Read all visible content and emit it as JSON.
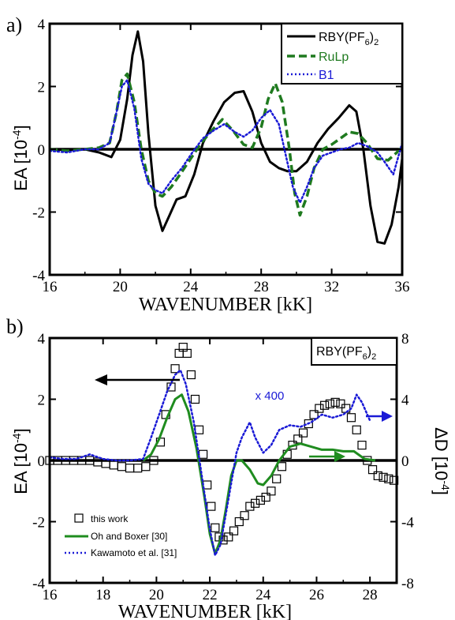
{
  "chart_data": [
    {
      "panel_label": "a)",
      "type": "line",
      "xlabel": "WAVENUMBER [kK]",
      "ylabel": "EA [10",
      "ylabel_exp": "-4",
      "ylabel_close": "]",
      "xlim": [
        16,
        36
      ],
      "ylim": [
        -4,
        4
      ],
      "x_ticks": [
        16,
        20,
        24,
        28,
        32,
        36
      ],
      "y_ticks": [
        -4,
        -2,
        0,
        2,
        4
      ],
      "grid": false,
      "legend_position": "top-right",
      "zero_line": true,
      "series": [
        {
          "name": "RBY(PF6)2",
          "legend_main": "RBY(PF",
          "legend_sub": "6",
          "legend_tail": ")",
          "legend_sub2": "2",
          "color": "#000000",
          "style": "solid",
          "points": [
            [
              16,
              0
            ],
            [
              17,
              -0.02
            ],
            [
              18,
              0
            ],
            [
              18.8,
              -0.1
            ],
            [
              19.5,
              -0.25
            ],
            [
              20,
              0.3
            ],
            [
              20.4,
              1.6
            ],
            [
              20.7,
              3.0
            ],
            [
              21.0,
              3.75
            ],
            [
              21.3,
              2.8
            ],
            [
              21.6,
              0.5
            ],
            [
              22.0,
              -1.8
            ],
            [
              22.4,
              -2.6
            ],
            [
              22.8,
              -2.1
            ],
            [
              23.2,
              -1.6
            ],
            [
              23.7,
              -1.5
            ],
            [
              24.2,
              -0.8
            ],
            [
              24.7,
              0.2
            ],
            [
              25.3,
              0.9
            ],
            [
              25.9,
              1.5
            ],
            [
              26.5,
              1.8
            ],
            [
              27.0,
              1.85
            ],
            [
              27.5,
              1.2
            ],
            [
              28.0,
              0.2
            ],
            [
              28.5,
              -0.4
            ],
            [
              29.0,
              -0.6
            ],
            [
              29.5,
              -0.7
            ],
            [
              30.0,
              -0.7
            ],
            [
              30.6,
              -0.4
            ],
            [
              31.2,
              0.2
            ],
            [
              31.8,
              0.65
            ],
            [
              32.4,
              1.0
            ],
            [
              33.0,
              1.4
            ],
            [
              33.4,
              1.2
            ],
            [
              33.8,
              0
            ],
            [
              34.2,
              -1.8
            ],
            [
              34.6,
              -2.95
            ],
            [
              35.0,
              -3.0
            ],
            [
              35.4,
              -2.4
            ],
            [
              35.8,
              -1.2
            ],
            [
              36,
              -0.3
            ]
          ]
        },
        {
          "name": "RuLp",
          "color": "#1f7a1f",
          "style": "dashed",
          "points": [
            [
              16,
              0
            ],
            [
              17,
              -0.05
            ],
            [
              18,
              0
            ],
            [
              18.8,
              0.05
            ],
            [
              19.4,
              0.2
            ],
            [
              19.8,
              1.2
            ],
            [
              20.1,
              2.2
            ],
            [
              20.4,
              2.4
            ],
            [
              20.8,
              1.5
            ],
            [
              21.2,
              0
            ],
            [
              21.6,
              -1.0
            ],
            [
              22.0,
              -1.4
            ],
            [
              22.4,
              -1.5
            ],
            [
              22.9,
              -1.2
            ],
            [
              23.4,
              -0.8
            ],
            [
              24.0,
              -0.3
            ],
            [
              24.6,
              0.2
            ],
            [
              25.2,
              0.6
            ],
            [
              25.8,
              0.95
            ],
            [
              26.4,
              0.6
            ],
            [
              27.0,
              0.15
            ],
            [
              27.5,
              0.05
            ],
            [
              28.0,
              0.7
            ],
            [
              28.4,
              1.6
            ],
            [
              28.8,
              2.1
            ],
            [
              29.2,
              1.5
            ],
            [
              29.6,
              0
            ],
            [
              29.9,
              -1.4
            ],
            [
              30.2,
              -2.1
            ],
            [
              30.6,
              -1.5
            ],
            [
              31.0,
              -0.6
            ],
            [
              31.5,
              0
            ],
            [
              32.0,
              0.15
            ],
            [
              32.5,
              0.35
            ],
            [
              33.0,
              0.55
            ],
            [
              33.5,
              0.5
            ],
            [
              34.0,
              0.2
            ],
            [
              34.6,
              -0.3
            ],
            [
              35.2,
              -0.35
            ],
            [
              35.7,
              -0.1
            ],
            [
              36,
              0.1
            ]
          ]
        },
        {
          "name": "B1",
          "color": "#1a1ad6",
          "style": "dotted",
          "points": [
            [
              16,
              -0.05
            ],
            [
              17,
              -0.1
            ],
            [
              18,
              0
            ],
            [
              18.8,
              0
            ],
            [
              19.4,
              0.2
            ],
            [
              19.8,
              1.2
            ],
            [
              20.1,
              2.0
            ],
            [
              20.4,
              2.2
            ],
            [
              20.8,
              1.3
            ],
            [
              21.2,
              -0.3
            ],
            [
              21.6,
              -1.1
            ],
            [
              22.0,
              -1.3
            ],
            [
              22.4,
              -1.4
            ],
            [
              22.9,
              -1.0
            ],
            [
              23.5,
              -0.6
            ],
            [
              24.1,
              -0.1
            ],
            [
              24.7,
              0.35
            ],
            [
              25.3,
              0.6
            ],
            [
              25.9,
              0.8
            ],
            [
              26.5,
              0.55
            ],
            [
              27.0,
              0.4
            ],
            [
              27.5,
              0.6
            ],
            [
              28.0,
              1.0
            ],
            [
              28.5,
              1.25
            ],
            [
              29.0,
              0.8
            ],
            [
              29.4,
              -0.2
            ],
            [
              29.8,
              -1.2
            ],
            [
              30.2,
              -1.7
            ],
            [
              30.6,
              -1.2
            ],
            [
              31.0,
              -0.6
            ],
            [
              31.5,
              -0.2
            ],
            [
              32.0,
              -0.1
            ],
            [
              32.5,
              0
            ],
            [
              33.0,
              0.05
            ],
            [
              33.5,
              0.2
            ],
            [
              34.0,
              0.1
            ],
            [
              34.6,
              -0.1
            ],
            [
              35.0,
              -0.4
            ],
            [
              35.5,
              -0.8
            ],
            [
              35.8,
              -0.2
            ],
            [
              36,
              0.2
            ]
          ]
        }
      ]
    },
    {
      "panel_label": "b)",
      "type": "line",
      "xlabel": "WAVENUMBER [kK]",
      "ylabel": "EA [10",
      "ylabel_exp": "-4",
      "ylabel_close": "]",
      "ylabel_right": "ΔD [10",
      "ylabel_right_exp": "-4",
      "ylabel_right_close": "]",
      "xlim": [
        16,
        29
      ],
      "ylim": [
        -4,
        4
      ],
      "ylim_right": [
        -8,
        8
      ],
      "x_ticks": [
        16,
        18,
        20,
        22,
        24,
        26,
        28
      ],
      "y_ticks": [
        -4,
        -2,
        0,
        2,
        4
      ],
      "y_ticks_right": [
        -8,
        -4,
        0,
        4,
        8
      ],
      "grid": false,
      "legend_position": "bottom-left",
      "title_box": {
        "main": "RBY(PF",
        "sub": "6",
        "tail": ")",
        "sub2": "2"
      },
      "annotation": "x 400",
      "zero_line": true,
      "series": [
        {
          "name": "this work",
          "color": "#000000",
          "style": "open-square",
          "axis": "left",
          "points": [
            [
              16,
              0
            ],
            [
              16.3,
              0
            ],
            [
              16.6,
              0
            ],
            [
              16.9,
              0
            ],
            [
              17.2,
              0
            ],
            [
              17.5,
              0
            ],
            [
              17.8,
              -0.05
            ],
            [
              18.1,
              -0.1
            ],
            [
              18.4,
              -0.15
            ],
            [
              18.7,
              -0.2
            ],
            [
              19.0,
              -0.25
            ],
            [
              19.3,
              -0.25
            ],
            [
              19.6,
              -0.2
            ],
            [
              19.9,
              0
            ],
            [
              20.15,
              0.6
            ],
            [
              20.35,
              1.5
            ],
            [
              20.55,
              2.4
            ],
            [
              20.7,
              3.0
            ],
            [
              20.85,
              3.5
            ],
            [
              21.0,
              3.7
            ],
            [
              21.15,
              3.5
            ],
            [
              21.3,
              2.8
            ],
            [
              21.45,
              2.0
            ],
            [
              21.6,
              1.0
            ],
            [
              21.75,
              0.2
            ],
            [
              21.9,
              -0.8
            ],
            [
              22.05,
              -1.5
            ],
            [
              22.2,
              -2.2
            ],
            [
              22.35,
              -2.5
            ],
            [
              22.5,
              -2.6
            ],
            [
              22.7,
              -2.5
            ],
            [
              22.9,
              -2.3
            ],
            [
              23.1,
              -2.0
            ],
            [
              23.3,
              -1.8
            ],
            [
              23.5,
              -1.5
            ],
            [
              23.7,
              -1.4
            ],
            [
              23.9,
              -1.3
            ],
            [
              24.1,
              -1.2
            ],
            [
              24.3,
              -1.0
            ],
            [
              24.5,
              -0.6
            ],
            [
              24.7,
              -0.2
            ],
            [
              24.9,
              0.2
            ],
            [
              25.1,
              0.5
            ],
            [
              25.3,
              0.7
            ],
            [
              25.5,
              0.9
            ],
            [
              25.7,
              1.2
            ],
            [
              25.9,
              1.5
            ],
            [
              26.1,
              1.7
            ],
            [
              26.3,
              1.8
            ],
            [
              26.5,
              1.85
            ],
            [
              26.7,
              1.9
            ],
            [
              26.9,
              1.85
            ],
            [
              27.1,
              1.7
            ],
            [
              27.3,
              1.4
            ],
            [
              27.5,
              1.0
            ],
            [
              27.7,
              0.5
            ],
            [
              27.9,
              0
            ],
            [
              28.1,
              -0.3
            ],
            [
              28.3,
              -0.5
            ],
            [
              28.5,
              -0.55
            ],
            [
              28.7,
              -0.6
            ],
            [
              28.9,
              -0.65
            ]
          ]
        },
        {
          "name": "Oh and Boxer [30]",
          "color": "#1f8c1f",
          "style": "solid",
          "axis": "left",
          "points": [
            [
              19.5,
              0
            ],
            [
              19.8,
              0.2
            ],
            [
              20.1,
              0.7
            ],
            [
              20.4,
              1.4
            ],
            [
              20.7,
              2.0
            ],
            [
              20.95,
              2.15
            ],
            [
              21.2,
              1.6
            ],
            [
              21.5,
              0.4
            ],
            [
              21.8,
              -1.2
            ],
            [
              22.0,
              -2.4
            ],
            [
              22.2,
              -3.05
            ],
            [
              22.4,
              -2.6
            ],
            [
              22.6,
              -1.6
            ],
            [
              22.8,
              -0.5
            ],
            [
              23.0,
              0
            ],
            [
              23.2,
              0
            ],
            [
              23.5,
              -0.3
            ],
            [
              23.8,
              -0.75
            ],
            [
              24.0,
              -0.8
            ],
            [
              24.3,
              -0.5
            ],
            [
              24.6,
              0
            ],
            [
              25.0,
              0.45
            ],
            [
              25.4,
              0.55
            ],
            [
              25.8,
              0.45
            ],
            [
              26.2,
              0.35
            ],
            [
              26.6,
              0.35
            ],
            [
              27.0,
              0.3
            ],
            [
              27.4,
              0.3
            ],
            [
              27.8,
              0.05
            ],
            [
              28.2,
              0
            ]
          ]
        },
        {
          "name": "Kawamoto et al. [31]",
          "color": "#1a1ad6",
          "style": "dotted",
          "axis": "right",
          "points": [
            [
              16,
              0.2
            ],
            [
              16.5,
              0.1
            ],
            [
              17,
              0.1
            ],
            [
              17.5,
              0.4
            ],
            [
              18,
              0.1
            ],
            [
              18.5,
              0
            ],
            [
              19,
              0
            ],
            [
              19.5,
              0.1
            ],
            [
              19.8,
              1.5
            ],
            [
              20.1,
              3.0
            ],
            [
              20.4,
              4.5
            ],
            [
              20.7,
              5.6
            ],
            [
              20.9,
              5.9
            ],
            [
              21.1,
              5.0
            ],
            [
              21.4,
              2.5
            ],
            [
              21.7,
              -1.0
            ],
            [
              22.0,
              -4.5
            ],
            [
              22.2,
              -6.2
            ],
            [
              22.4,
              -5.5
            ],
            [
              22.7,
              -2.5
            ],
            [
              23.0,
              0.5
            ],
            [
              23.2,
              1.5
            ],
            [
              23.5,
              2.5
            ],
            [
              23.7,
              1.5
            ],
            [
              24.0,
              0.5
            ],
            [
              24.3,
              1.0
            ],
            [
              24.6,
              2.0
            ],
            [
              25.0,
              2.3
            ],
            [
              25.4,
              2.2
            ],
            [
              25.8,
              2.5
            ],
            [
              26.2,
              3.0
            ],
            [
              26.6,
              2.8
            ],
            [
              27.0,
              3.0
            ],
            [
              27.3,
              3.4
            ],
            [
              27.5,
              4.3
            ],
            [
              27.7,
              3.8
            ],
            [
              27.9,
              3.0
            ],
            [
              28.0,
              2.6
            ]
          ]
        }
      ]
    }
  ]
}
